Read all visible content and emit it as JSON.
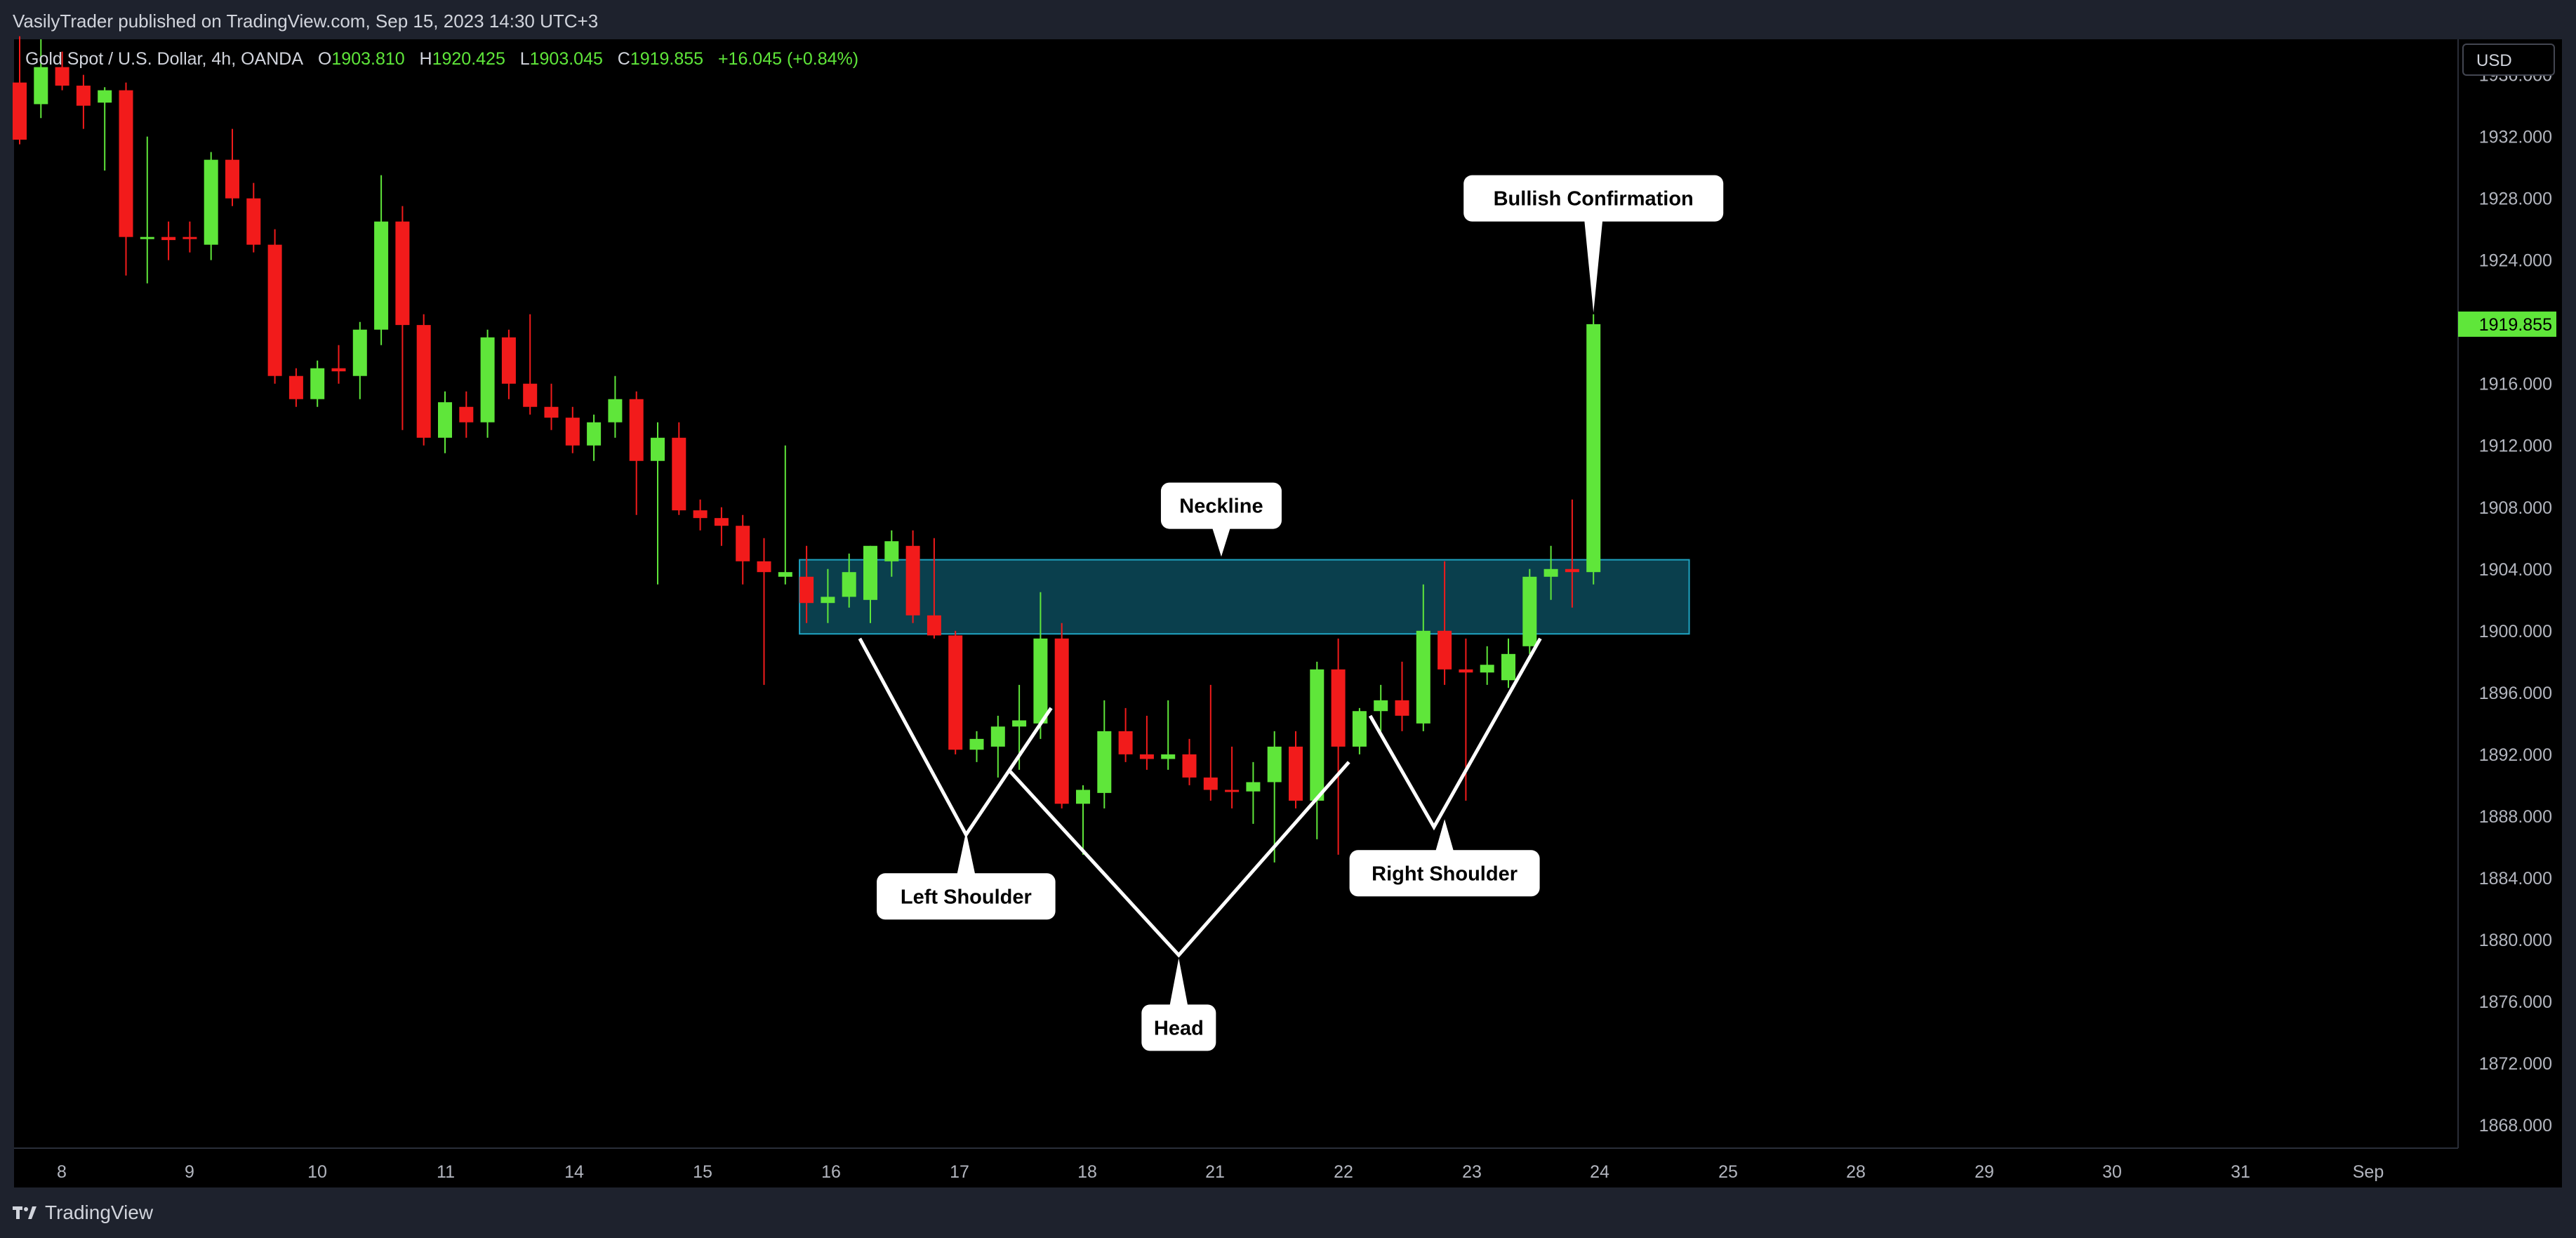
{
  "header": {
    "published_text": "VasilyTrader published on TradingView.com, Sep 15, 2023 14:30 UTC+3"
  },
  "legend": {
    "symbol": "Gold Spot / U.S. Dollar, 4h, OANDA",
    "open_label": "O",
    "open": "1903.810",
    "high_label": "H",
    "high": "1920.425",
    "low_label": "L",
    "low": "1903.045",
    "close_label": "C",
    "close": "1919.855",
    "change": "+16.045 (+0.84%)"
  },
  "currency_button": {
    "label": "USD"
  },
  "footer": {
    "brand": "TradingView"
  },
  "colors": {
    "up": "#5fe63a",
    "down": "#f21b1b",
    "zone_fill": "#0c4a5a",
    "zone_border": "#1fa3c2",
    "background": "#000000",
    "axis_text": "#b2b5be",
    "last_price_badge": "#5fe63a"
  },
  "chart_data": {
    "type": "candlestick",
    "price_axis": {
      "ticks": [
        "1936.000",
        "1932.000",
        "1928.000",
        "1924.000",
        "1916.000",
        "1912.000",
        "1908.000",
        "1904.000",
        "1900.000",
        "1896.000",
        "1892.000",
        "1888.000",
        "1884.000",
        "1880.000",
        "1876.000",
        "1872.000",
        "1868.000"
      ],
      "range": [
        1866.5,
        1938.3
      ],
      "last_price": 1919.855,
      "last_price_label": "1919.855"
    },
    "time_axis": {
      "labels": [
        "8",
        "9",
        "10",
        "11",
        "14",
        "15",
        "16",
        "17",
        "18",
        "21",
        "22",
        "23",
        "24",
        "25",
        "28",
        "29",
        "30",
        "31",
        "Sep"
      ]
    },
    "candles": [
      {
        "o": 1935.5,
        "h": 1938.5,
        "l": 1931.5,
        "c": 1931.8
      },
      {
        "o": 1934.1,
        "h": 1938.3,
        "l": 1933.2,
        "c": 1936.5
      },
      {
        "o": 1936.5,
        "h": 1937.5,
        "l": 1935.0,
        "c": 1935.3
      },
      {
        "o": 1935.3,
        "h": 1936.0,
        "l": 1932.5,
        "c": 1934.0
      },
      {
        "o": 1934.2,
        "h": 1935.2,
        "l": 1929.8,
        "c": 1935.0
      },
      {
        "o": 1935.0,
        "h": 1935.5,
        "l": 1923.0,
        "c": 1925.5
      },
      {
        "o": 1925.5,
        "h": 1932.0,
        "l": 1922.5,
        "c": 1925.5
      },
      {
        "o": 1925.5,
        "h": 1926.5,
        "l": 1924.0,
        "c": 1925.3
      },
      {
        "o": 1925.5,
        "h": 1926.5,
        "l": 1924.5,
        "c": 1925.4
      },
      {
        "o": 1925.0,
        "h": 1931.0,
        "l": 1924.0,
        "c": 1930.5
      },
      {
        "o": 1930.5,
        "h": 1932.5,
        "l": 1927.5,
        "c": 1928.0
      },
      {
        "o": 1928.0,
        "h": 1929.0,
        "l": 1924.5,
        "c": 1925.0
      },
      {
        "o": 1925.0,
        "h": 1926.0,
        "l": 1916.0,
        "c": 1916.5
      },
      {
        "o": 1916.5,
        "h": 1917.0,
        "l": 1914.5,
        "c": 1915.0
      },
      {
        "o": 1915.0,
        "h": 1917.5,
        "l": 1914.5,
        "c": 1917.0
      },
      {
        "o": 1917.0,
        "h": 1918.5,
        "l": 1916.0,
        "c": 1916.8
      },
      {
        "o": 1916.5,
        "h": 1920.0,
        "l": 1915.0,
        "c": 1919.5
      },
      {
        "o": 1919.5,
        "h": 1929.5,
        "l": 1918.5,
        "c": 1926.5
      },
      {
        "o": 1926.5,
        "h": 1927.5,
        "l": 1913.0,
        "c": 1919.8
      },
      {
        "o": 1919.8,
        "h": 1920.5,
        "l": 1912.0,
        "c": 1912.5
      },
      {
        "o": 1912.5,
        "h": 1915.5,
        "l": 1911.5,
        "c": 1914.8
      },
      {
        "o": 1914.5,
        "h": 1915.5,
        "l": 1912.5,
        "c": 1913.5
      },
      {
        "o": 1913.5,
        "h": 1919.5,
        "l": 1912.5,
        "c": 1919.0
      },
      {
        "o": 1919.0,
        "h": 1919.5,
        "l": 1915.0,
        "c": 1916.0
      },
      {
        "o": 1916.0,
        "h": 1920.5,
        "l": 1914.0,
        "c": 1914.5
      },
      {
        "o": 1914.5,
        "h": 1916.0,
        "l": 1913.0,
        "c": 1913.8
      },
      {
        "o": 1913.8,
        "h": 1914.5,
        "l": 1911.5,
        "c": 1912.0
      },
      {
        "o": 1912.0,
        "h": 1914.0,
        "l": 1911.0,
        "c": 1913.5
      },
      {
        "o": 1913.5,
        "h": 1916.5,
        "l": 1912.5,
        "c": 1915.0
      },
      {
        "o": 1915.0,
        "h": 1915.5,
        "l": 1907.5,
        "c": 1911.0
      },
      {
        "o": 1911.0,
        "h": 1913.5,
        "l": 1903.0,
        "c": 1912.5
      },
      {
        "o": 1912.5,
        "h": 1913.5,
        "l": 1907.5,
        "c": 1907.8
      },
      {
        "o": 1907.8,
        "h": 1908.5,
        "l": 1906.5,
        "c": 1907.3
      },
      {
        "o": 1907.3,
        "h": 1908.0,
        "l": 1905.5,
        "c": 1906.8
      },
      {
        "o": 1906.8,
        "h": 1907.5,
        "l": 1903.0,
        "c": 1904.5
      },
      {
        "o": 1904.5,
        "h": 1906.0,
        "l": 1896.5,
        "c": 1903.8
      },
      {
        "o": 1903.5,
        "h": 1912.0,
        "l": 1903.0,
        "c": 1903.8
      },
      {
        "o": 1903.5,
        "h": 1905.5,
        "l": 1900.5,
        "c": 1901.8
      },
      {
        "o": 1901.8,
        "h": 1904.0,
        "l": 1900.5,
        "c": 1902.2
      },
      {
        "o": 1902.2,
        "h": 1905.0,
        "l": 1901.5,
        "c": 1903.8
      },
      {
        "o": 1902.0,
        "h": 1905.5,
        "l": 1900.5,
        "c": 1905.5
      },
      {
        "o": 1904.5,
        "h": 1906.5,
        "l": 1903.5,
        "c": 1905.8
      },
      {
        "o": 1905.5,
        "h": 1906.5,
        "l": 1900.5,
        "c": 1901.0
      },
      {
        "o": 1901.0,
        "h": 1906.0,
        "l": 1899.5,
        "c": 1899.7
      },
      {
        "o": 1899.7,
        "h": 1900.0,
        "l": 1892.0,
        "c": 1892.3
      },
      {
        "o": 1892.3,
        "h": 1893.5,
        "l": 1891.5,
        "c": 1893.0
      },
      {
        "o": 1892.5,
        "h": 1894.5,
        "l": 1890.5,
        "c": 1893.8
      },
      {
        "o": 1893.8,
        "h": 1896.5,
        "l": 1891.0,
        "c": 1894.2
      },
      {
        "o": 1894.0,
        "h": 1902.5,
        "l": 1893.0,
        "c": 1899.5
      },
      {
        "o": 1899.5,
        "h": 1900.5,
        "l": 1888.5,
        "c": 1888.8
      },
      {
        "o": 1888.8,
        "h": 1890.0,
        "l": 1885.5,
        "c": 1889.7
      },
      {
        "o": 1889.5,
        "h": 1895.5,
        "l": 1888.5,
        "c": 1893.5
      },
      {
        "o": 1893.5,
        "h": 1895.0,
        "l": 1891.5,
        "c": 1892.0
      },
      {
        "o": 1892.0,
        "h": 1894.5,
        "l": 1891.0,
        "c": 1891.7
      },
      {
        "o": 1891.7,
        "h": 1895.5,
        "l": 1891.0,
        "c": 1892.0
      },
      {
        "o": 1892.0,
        "h": 1893.0,
        "l": 1890.0,
        "c": 1890.5
      },
      {
        "o": 1890.5,
        "h": 1896.5,
        "l": 1889.0,
        "c": 1889.7
      },
      {
        "o": 1889.7,
        "h": 1892.5,
        "l": 1888.5,
        "c": 1889.6
      },
      {
        "o": 1889.6,
        "h": 1891.5,
        "l": 1887.5,
        "c": 1890.2
      },
      {
        "o": 1890.2,
        "h": 1893.5,
        "l": 1885.0,
        "c": 1892.5
      },
      {
        "o": 1892.5,
        "h": 1893.5,
        "l": 1888.5,
        "c": 1889.0
      },
      {
        "o": 1889.0,
        "h": 1898.0,
        "l": 1886.5,
        "c": 1897.5
      },
      {
        "o": 1897.5,
        "h": 1899.5,
        "l": 1885.5,
        "c": 1892.5
      },
      {
        "o": 1892.5,
        "h": 1895.0,
        "l": 1892.0,
        "c": 1894.8
      },
      {
        "o": 1894.8,
        "h": 1896.5,
        "l": 1893.5,
        "c": 1895.5
      },
      {
        "o": 1895.5,
        "h": 1898.0,
        "l": 1893.5,
        "c": 1894.5
      },
      {
        "o": 1894.0,
        "h": 1903.0,
        "l": 1893.5,
        "c": 1900.0
      },
      {
        "o": 1900.0,
        "h": 1904.5,
        "l": 1896.5,
        "c": 1897.5
      },
      {
        "o": 1897.5,
        "h": 1899.5,
        "l": 1889.0,
        "c": 1897.3
      },
      {
        "o": 1897.3,
        "h": 1899.0,
        "l": 1896.5,
        "c": 1897.8
      },
      {
        "o": 1896.8,
        "h": 1899.5,
        "l": 1896.3,
        "c": 1898.5
      },
      {
        "o": 1899.0,
        "h": 1904.0,
        "l": 1898.5,
        "c": 1903.5
      },
      {
        "o": 1903.5,
        "h": 1905.5,
        "l": 1902.0,
        "c": 1904.0
      },
      {
        "o": 1904.0,
        "h": 1908.5,
        "l": 1901.5,
        "c": 1903.8
      },
      {
        "o": 1903.8,
        "h": 1920.5,
        "l": 1903.0,
        "c": 1919.855
      }
    ],
    "zone": {
      "label": "Neckline",
      "top": 1904.6,
      "bottom": 1899.8,
      "start_index": 37,
      "end_candle_offset": 4.5
    },
    "annotations": [
      {
        "label": "Bullish Confirmation",
        "price": 1928.0,
        "index": 74,
        "pointer": "down",
        "pointer_to_price": 1920.6
      },
      {
        "label": "Neckline",
        "price": 1908.1,
        "index": 56.5,
        "pointer": "down",
        "pointer_to_price": 1904.8
      },
      {
        "label": "Left Shoulder",
        "price": 1882.8,
        "index": 44.5,
        "pointer": "up",
        "pointer_to_price": 1887.0
      },
      {
        "label": "Right Shoulder",
        "price": 1884.3,
        "index": 67,
        "pointer": "up",
        "pointer_to_price": 1887.8
      },
      {
        "label": "Head",
        "price": 1874.3,
        "index": 54.5,
        "pointer": "up",
        "pointer_to_price": 1878.8
      }
    ],
    "pattern_lines": [
      [
        [
          39.5,
          1899.5
        ],
        [
          44.5,
          1886.8
        ],
        [
          48.5,
          1895.0
        ]
      ],
      [
        [
          46.5,
          1891.0
        ],
        [
          54.5,
          1879.0
        ],
        [
          62.5,
          1891.5
        ]
      ],
      [
        [
          63.5,
          1894.5
        ],
        [
          66.5,
          1887.3
        ],
        [
          71.5,
          1899.5
        ]
      ]
    ]
  }
}
